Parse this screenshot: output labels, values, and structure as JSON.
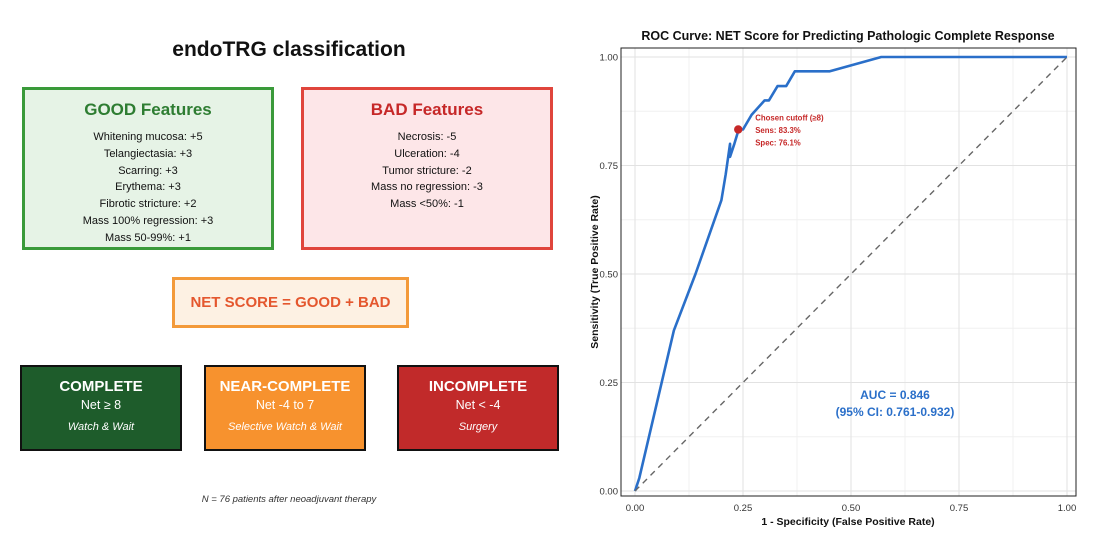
{
  "left": {
    "title": "endoTRG classification",
    "good": {
      "title": "GOOD Features",
      "items": [
        "Whitening mucosa: +5",
        "Telangiectasia: +3",
        "Scarring: +3",
        "Erythema: +3",
        "Fibrotic stricture: +2",
        "Mass 100% regression: +3",
        "Mass 50-99%: +1"
      ]
    },
    "bad": {
      "title": "BAD Features",
      "items": [
        "Necrosis: -5",
        "Ulceration: -4",
        "Tumor stricture: -2",
        "Mass no regression: -3",
        "Mass <50%: -1"
      ]
    },
    "net_score": "NET SCORE = GOOD + BAD",
    "categories": [
      {
        "title": "COMPLETE",
        "net": "Net ≥ 8",
        "action": "Watch & Wait",
        "color": "#1e5c2b"
      },
      {
        "title": "NEAR-COMPLETE",
        "net": "Net -4 to 7",
        "action": "Selective Watch & Wait",
        "color": "#f7922e"
      },
      {
        "title": "INCOMPLETE",
        "net": "Net < -4",
        "action": "Surgery",
        "color": "#c12a2a"
      }
    ],
    "footnote": "N = 76 patients after neoadjuvant therapy"
  },
  "chart_data": {
    "type": "line",
    "title": "ROC Curve: NET Score for Predicting Pathologic Complete Response",
    "xlabel": "1 - Specificity (False Positive Rate)",
    "ylabel": "Sensitivity (True Positive Rate)",
    "xlim": [
      0,
      1
    ],
    "ylim": [
      0,
      1
    ],
    "xticks": [
      "0.00",
      "0.25",
      "0.50",
      "0.75",
      "1.00"
    ],
    "yticks": [
      "0.00",
      "0.25",
      "0.50",
      "0.75",
      "1.00"
    ],
    "grid": true,
    "series": [
      {
        "color": "#2a6fc9",
        "x": [
          0.0,
          0.01,
          0.05,
          0.09,
          0.14,
          0.2,
          0.21,
          0.22,
          0.22,
          0.23,
          0.24,
          0.25,
          0.27,
          0.3,
          0.31,
          0.33,
          0.35,
          0.37,
          0.39,
          0.4,
          0.45,
          0.57,
          1.0
        ],
        "y": [
          0.0,
          0.03,
          0.2,
          0.37,
          0.5,
          0.67,
          0.73,
          0.8,
          0.77,
          0.8,
          0.833,
          0.833,
          0.867,
          0.9,
          0.9,
          0.933,
          0.933,
          0.967,
          0.967,
          0.967,
          0.967,
          1.0,
          1.0
        ]
      },
      {
        "color": "#666666",
        "dashed": true,
        "x": [
          0,
          1
        ],
        "y": [
          0,
          1
        ]
      }
    ],
    "cutoff_point": {
      "x": 0.239,
      "y": 0.833,
      "color": "#c62828",
      "label_lines": [
        "Chosen cutoff (≥8)",
        "Sens: 83.3%",
        "Spec: 76.1%"
      ]
    },
    "annotation": {
      "lines": [
        "AUC = 0.846",
        "(95% CI: 0.761-0.932)"
      ],
      "color": "#2a6fc9"
    }
  }
}
